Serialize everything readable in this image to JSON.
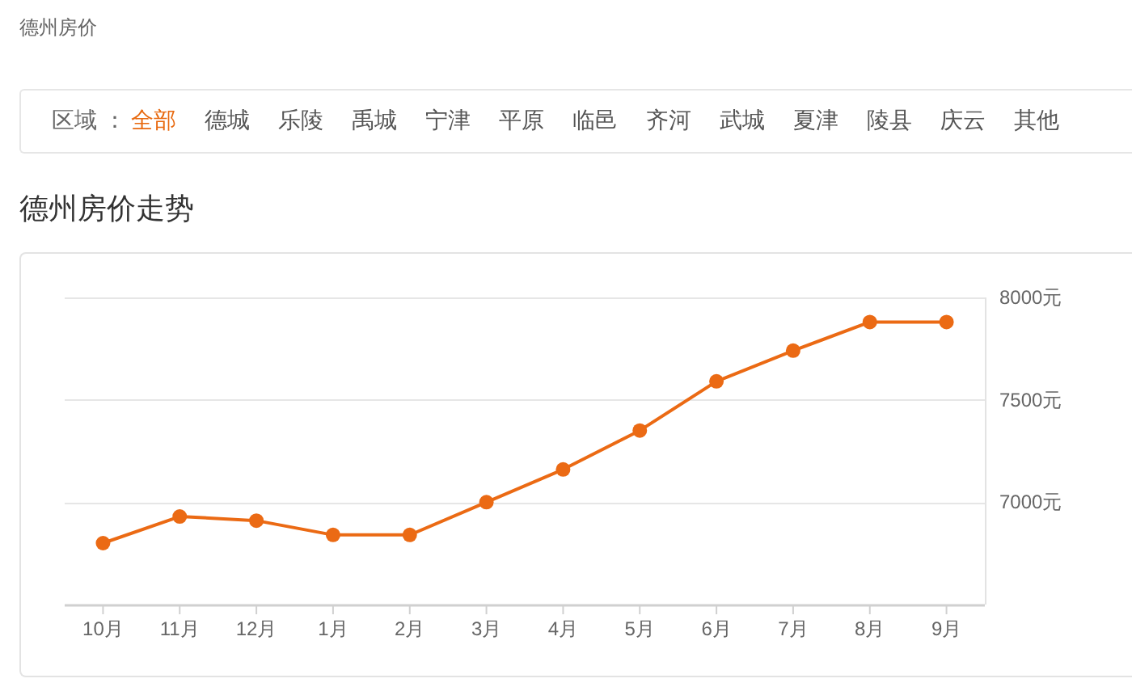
{
  "chart_data": [
    {
      "type": "other",
      "annotations": [
        "德州房价"
      ]
    },
    {
      "type": "other",
      "title": "区域 ：",
      "categories": [
        "全部",
        "德城",
        "乐陵",
        "禹城",
        "宁津",
        "平原",
        "临邑",
        "齐河",
        "武城",
        "夏津",
        "陵县",
        "庆云",
        "其他"
      ],
      "colors": [
        "#e8690f",
        "#555555",
        "#555555",
        "#555555",
        "#555555",
        "#555555",
        "#555555",
        "#555555",
        "#555555",
        "#555555",
        "#555555",
        "#555555",
        "#555555"
      ]
    },
    {
      "type": "line",
      "title": "德州房价走势",
      "categories": [
        "10月",
        "11月",
        "12月",
        "1月",
        "2月",
        "3月",
        "4月",
        "5月",
        "6月",
        "7月",
        "8月",
        "9月"
      ],
      "series": [
        {
          "color": "#eb6a14",
          "values": [
            6800,
            6930,
            6910,
            6840,
            6840,
            7000,
            7160,
            7350,
            7590,
            7740,
            7880,
            7880
          ]
        }
      ],
      "ylim": [
        6500,
        8000
      ],
      "yticks": [
        {
          "value": 7000,
          "label": "7000元"
        },
        {
          "value": 7500,
          "label": "7500元"
        },
        {
          "value": 8000,
          "label": "8000元"
        }
      ],
      "grid": "y",
      "marker": "circle",
      "line_style": "solid"
    }
  ]
}
